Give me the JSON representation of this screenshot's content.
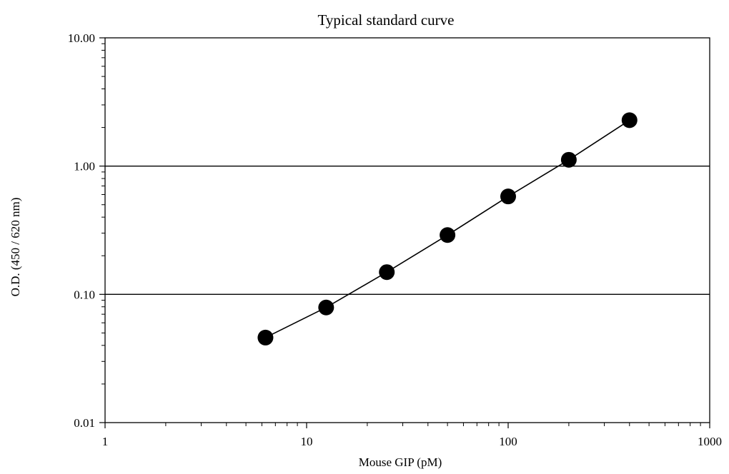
{
  "chart_data": {
    "type": "line",
    "title": "Typical standard curve",
    "xlabel": "Mouse GIP  (pM)",
    "ylabel": "O.D. (450 / 620 nm)",
    "x_scale": "log",
    "y_scale": "log",
    "xlim": [
      1,
      1000
    ],
    "ylim": [
      0.01,
      10
    ],
    "x_ticks": [
      1,
      10,
      100,
      1000
    ],
    "x_tick_labels": [
      "1",
      "10",
      "100",
      "1000"
    ],
    "y_ticks": [
      0.01,
      0.1,
      1,
      10
    ],
    "y_tick_labels": [
      "0.01",
      "0.10",
      "1.00",
      "10.00"
    ],
    "horizontal_gridlines": [
      0.1,
      1
    ],
    "legend": "none",
    "series": [
      {
        "x": [
          6.25,
          12.5,
          25,
          50,
          100,
          200,
          400
        ],
        "y": [
          0.046,
          0.079,
          0.149,
          0.29,
          0.58,
          1.12,
          2.28
        ]
      }
    ],
    "colors": {
      "line": "#000000",
      "marker": "#000000"
    }
  }
}
